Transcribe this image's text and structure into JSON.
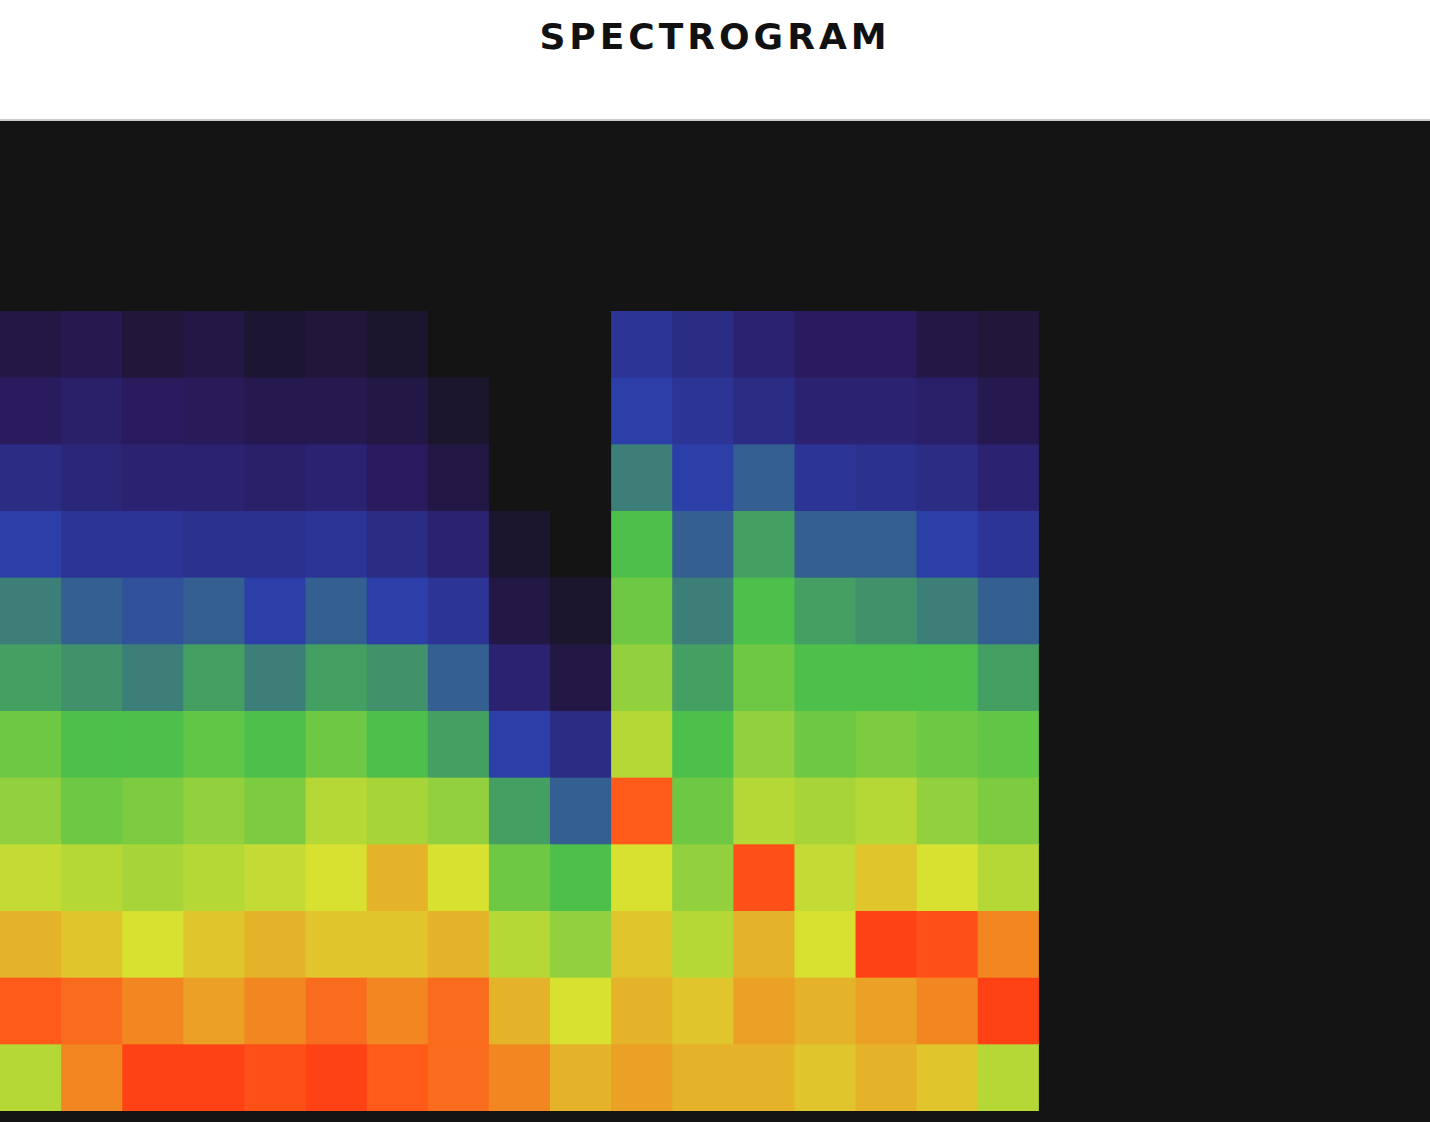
{
  "chart_data": {
    "type": "heatmap",
    "title": "SPECTROGRAM",
    "tick_labels": false,
    "zlim": [
      0,
      100
    ],
    "cells": [
      [
        10,
        12,
        8,
        10,
        6,
        8,
        5,
        0,
        0,
        0,
        30,
        25,
        20,
        15,
        15,
        10,
        8,
        0
      ],
      [
        15,
        18,
        15,
        14,
        12,
        12,
        10,
        5,
        0,
        0,
        35,
        30,
        25,
        20,
        20,
        18,
        12,
        0
      ],
      [
        25,
        22,
        20,
        20,
        18,
        20,
        15,
        10,
        0,
        0,
        45,
        35,
        40,
        30,
        28,
        25,
        20,
        0
      ],
      [
        35,
        30,
        30,
        28,
        28,
        30,
        25,
        20,
        5,
        0,
        55,
        40,
        50,
        40,
        40,
        35,
        30,
        0
      ],
      [
        45,
        40,
        38,
        40,
        35,
        40,
        35,
        30,
        10,
        5,
        60,
        45,
        55,
        50,
        48,
        45,
        40,
        0
      ],
      [
        50,
        48,
        45,
        50,
        45,
        50,
        48,
        40,
        20,
        10,
        65,
        50,
        60,
        55,
        55,
        55,
        50,
        0
      ],
      [
        60,
        55,
        55,
        58,
        55,
        60,
        55,
        50,
        35,
        25,
        70,
        55,
        65,
        60,
        62,
        60,
        58,
        0
      ],
      [
        65,
        60,
        62,
        65,
        62,
        70,
        68,
        65,
        50,
        40,
        90,
        60,
        70,
        68,
        70,
        65,
        62,
        0
      ],
      [
        72,
        70,
        68,
        70,
        72,
        75,
        80,
        75,
        60,
        55,
        75,
        65,
        92,
        72,
        78,
        75,
        70,
        0
      ],
      [
        80,
        78,
        75,
        78,
        80,
        78,
        78,
        80,
        70,
        65,
        78,
        70,
        80,
        75,
        95,
        92,
        85,
        0
      ],
      [
        90,
        88,
        85,
        82,
        85,
        88,
        85,
        88,
        80,
        75,
        80,
        78,
        82,
        80,
        82,
        85,
        95,
        0
      ],
      [
        70,
        85,
        95,
        95,
        92,
        95,
        90,
        88,
        85,
        80,
        82,
        80,
        80,
        78,
        80,
        78,
        70,
        0
      ]
    ]
  }
}
